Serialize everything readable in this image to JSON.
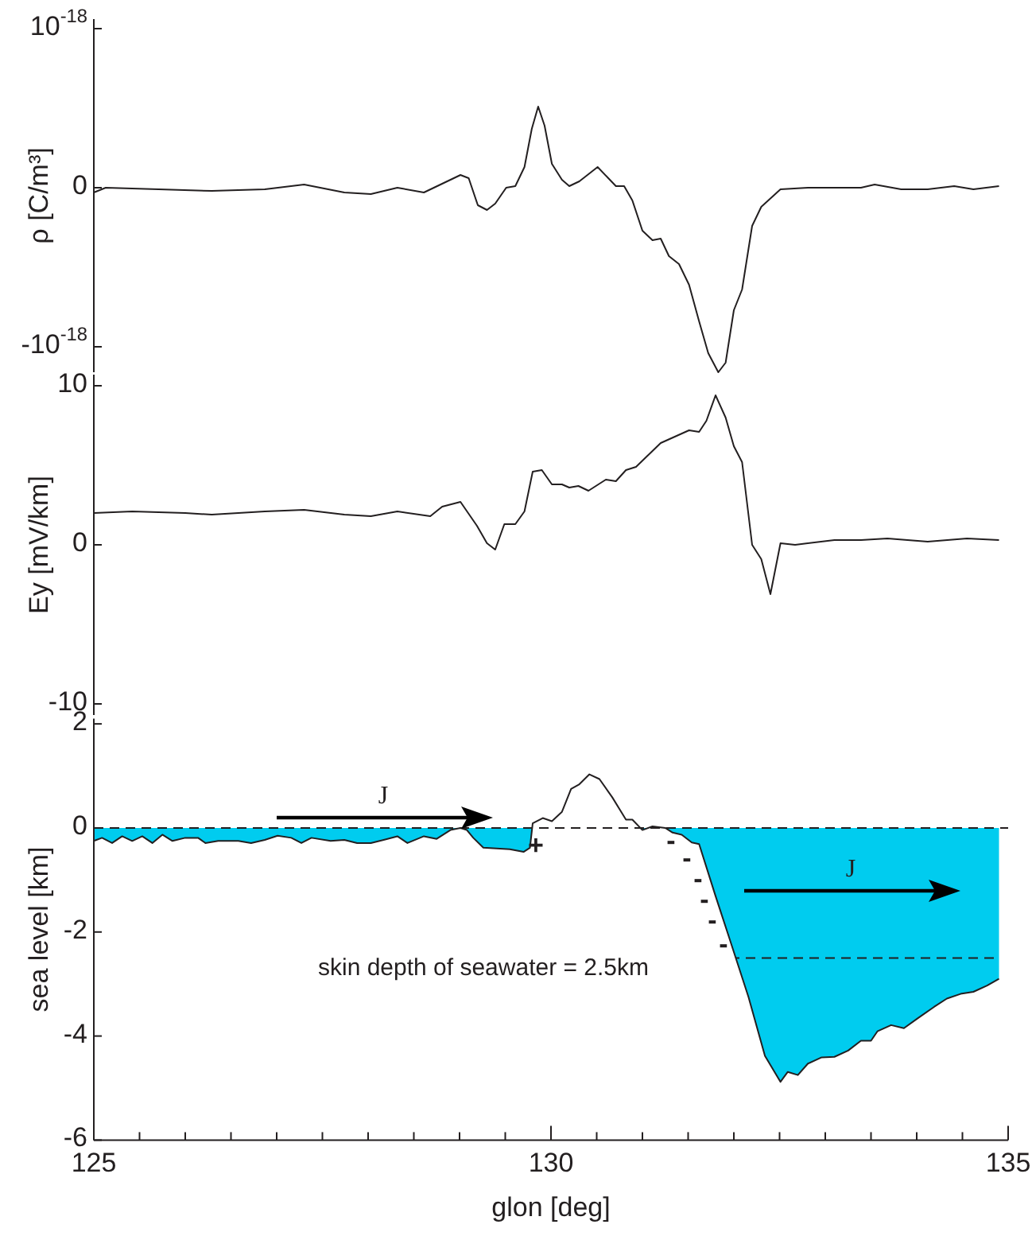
{
  "chart_data": [
    {
      "type": "line",
      "ylabel": "ρ [C/m³]",
      "xlim": [
        125,
        135
      ],
      "ylim": [
        -1.16e-18,
        1.06e-18
      ],
      "tick_labels": "y",
      "yticks": [
        {
          "value": 1e-18,
          "label": "10$^{-18}$"
        },
        0,
        {
          "value": -1e-18,
          "label": "-10$^{-18}$"
        }
      ],
      "series": [
        {
          "color": "#231f20",
          "x": [
            125.0,
            125.13,
            125.71,
            126.29,
            126.87,
            127.3,
            127.74,
            128.03,
            128.32,
            128.61,
            129.01,
            129.1,
            129.2,
            129.3,
            129.39,
            129.51,
            129.61,
            129.71,
            129.79,
            129.86,
            129.93,
            130.01,
            130.12,
            130.2,
            130.31,
            130.51,
            130.71,
            130.8,
            130.89,
            131.0,
            131.11,
            131.2,
            131.29,
            131.4,
            131.51,
            131.62,
            131.72,
            131.83,
            131.91,
            132.0,
            132.09,
            132.2,
            132.3,
            132.51,
            132.81,
            133.1,
            133.39,
            133.54,
            133.83,
            134.12,
            134.41,
            134.62,
            134.9
          ],
          "values": [
            -3e-20,
            0,
            -1e-20,
            -2e-20,
            -1e-20,
            2e-20,
            -3e-20,
            -4e-20,
            0,
            -3e-20,
            8e-20,
            6e-20,
            -1.1e-19,
            -1.4e-19,
            -1e-19,
            0,
            1e-20,
            1.3e-19,
            3.7e-19,
            5.1e-19,
            3.9e-19,
            1.5e-19,
            5e-20,
            1e-20,
            4e-20,
            1.3e-19,
            1e-20,
            1e-20,
            -8e-20,
            -2.7e-19,
            -3.3e-19,
            -3.2e-19,
            -4.3e-19,
            -4.8e-19,
            -6.1e-19,
            -8.4e-19,
            -1.04e-18,
            -1.16e-18,
            -1.1e-18,
            -7.7e-19,
            -6.4e-19,
            -2.4e-19,
            -1.2e-19,
            -1e-20,
            0,
            0,
            0,
            2e-20,
            -1e-20,
            -1e-20,
            1e-20,
            -1e-20,
            1e-20
          ]
        }
      ]
    },
    {
      "type": "line",
      "ylabel": "Ey [mV/km]",
      "xlim": [
        125,
        135
      ],
      "ylim": [
        -10.7,
        10.7
      ],
      "tick_labels": "y",
      "yticks": [
        10,
        0,
        -10
      ],
      "series": [
        {
          "color": "#231f20",
          "x": [
            125.0,
            125.42,
            126.0,
            126.29,
            126.87,
            127.3,
            127.74,
            128.03,
            128.32,
            128.68,
            128.81,
            129.01,
            129.19,
            129.3,
            129.39,
            129.49,
            129.61,
            129.71,
            129.8,
            129.9,
            130.01,
            130.12,
            130.2,
            130.3,
            130.41,
            130.6,
            130.71,
            130.82,
            130.93,
            131.2,
            131.51,
            131.62,
            131.7,
            131.8,
            131.91,
            132.0,
            132.09,
            132.2,
            132.3,
            132.4,
            132.51,
            132.67,
            133.1,
            133.39,
            133.68,
            134.12,
            134.55,
            134.9
          ],
          "values": [
            2.0,
            2.1,
            2.0,
            1.9,
            2.1,
            2.2,
            1.9,
            1.8,
            2.1,
            1.8,
            2.4,
            2.7,
            1.2,
            0.1,
            -0.3,
            1.3,
            1.3,
            2.1,
            4.6,
            4.7,
            3.8,
            3.8,
            3.6,
            3.7,
            3.4,
            4.1,
            4.0,
            4.7,
            4.9,
            6.4,
            7.2,
            7.1,
            7.8,
            9.4,
            8.0,
            6.2,
            5.2,
            0,
            -0.9,
            -3.1,
            0.1,
            0,
            0.3,
            0.3,
            0.4,
            0.2,
            0.4,
            0.3
          ]
        }
      ]
    },
    {
      "type": "area",
      "ylabel": "sea level [km]",
      "xlabel": "glon [deg]",
      "xlim": [
        125,
        135
      ],
      "ylim": [
        -6,
        2.1
      ],
      "yticks": [
        2,
        0,
        -2,
        -4,
        -6
      ],
      "xticks": [
        125,
        {
          "value": 125.5,
          "label": null
        },
        {
          "value": 126,
          "label": null
        },
        {
          "value": 126.5,
          "label": null
        },
        {
          "value": 127,
          "label": null
        },
        {
          "value": 127.5,
          "label": null
        },
        {
          "value": 128,
          "label": null
        },
        {
          "value": 128.5,
          "label": null
        },
        {
          "value": 129,
          "label": null
        },
        {
          "value": 129.5,
          "label": null
        },
        130,
        {
          "value": 130.5,
          "label": null
        },
        {
          "value": 131,
          "label": null
        },
        {
          "value": 131.5,
          "label": null
        },
        {
          "value": 132,
          "label": null
        },
        {
          "value": 132.5,
          "label": null
        },
        {
          "value": 133,
          "label": null
        },
        {
          "value": 133.5,
          "label": null
        },
        {
          "value": 134,
          "label": null
        },
        {
          "value": 134.5,
          "label": null
        },
        135
      ],
      "ref_lines": [
        {
          "axis": "y",
          "value": 0,
          "line_style": "dashed"
        },
        {
          "axis": "y",
          "value": -2.5,
          "line_style": "dashed"
        }
      ],
      "annotations": [
        "J",
        "J",
        "+",
        "-",
        "-",
        "-",
        "-",
        "-",
        "-",
        "skin depth of seawater = 2.5km"
      ],
      "series": [
        {
          "color": "#00ccef",
          "x": [
            125.0,
            125.09,
            125.2,
            125.31,
            125.42,
            125.53,
            125.64,
            125.75,
            125.86,
            126.0,
            126.14,
            126.22,
            126.36,
            126.58,
            126.72,
            126.87,
            127.01,
            127.16,
            127.27,
            127.38,
            127.59,
            127.74,
            127.88,
            128.03,
            128.17,
            128.32,
            128.43,
            128.61,
            128.75,
            128.9,
            129.01,
            129.08,
            129.15,
            129.26,
            129.55,
            129.7,
            129.77,
            129.8,
            129.91,
            130.01,
            130.12,
            130.22,
            130.31,
            130.42,
            130.53,
            130.67,
            130.82,
            130.89,
            131.0,
            131.11,
            131.25,
            131.33,
            131.43,
            131.54,
            131.62,
            131.8,
            131.94,
            132.16,
            132.34,
            132.51,
            132.59,
            132.7,
            132.81,
            132.96,
            133.1,
            133.25,
            133.39,
            133.5,
            133.57,
            133.72,
            133.86,
            134.01,
            134.19,
            134.33,
            134.48,
            134.62,
            134.77,
            134.9
          ],
          "values": [
            -0.25,
            -0.19,
            -0.29,
            -0.16,
            -0.25,
            -0.16,
            -0.29,
            -0.13,
            -0.25,
            -0.19,
            -0.19,
            -0.29,
            -0.25,
            -0.25,
            -0.29,
            -0.23,
            -0.15,
            -0.19,
            -0.29,
            -0.19,
            -0.25,
            -0.23,
            -0.29,
            -0.29,
            -0.23,
            -0.16,
            -0.29,
            -0.16,
            -0.21,
            -0.04,
            0,
            -0.04,
            -0.19,
            -0.38,
            -0.41,
            -0.46,
            -0.38,
            0.09,
            0.19,
            0.13,
            0.31,
            0.75,
            0.84,
            1.03,
            0.94,
            0.59,
            0.16,
            0.16,
            -0.04,
            0.03,
            0,
            -0.09,
            -0.13,
            -0.28,
            -0.31,
            -1.31,
            -2.06,
            -3.25,
            -4.38,
            -4.88,
            -4.69,
            -4.75,
            -4.53,
            -4.41,
            -4.4,
            -4.28,
            -4.09,
            -4.09,
            -3.91,
            -3.79,
            -3.85,
            -3.66,
            -3.44,
            -3.28,
            -3.19,
            -3.15,
            -3.03,
            -2.9
          ]
        }
      ]
    }
  ]
}
